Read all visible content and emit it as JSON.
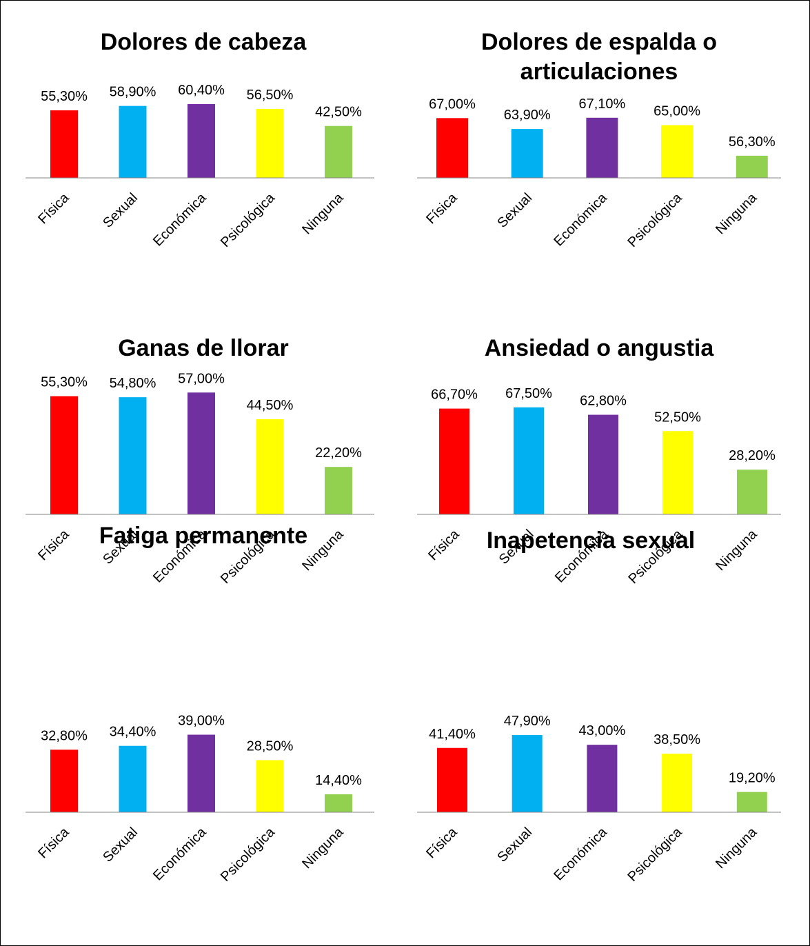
{
  "chart_data": [
    {
      "type": "bar",
      "title": "Dolores de cabeza",
      "categories": [
        "Física",
        "Sexual",
        "Económica",
        "Psicológica",
        "Ninguna"
      ],
      "values": [
        55.3,
        58.9,
        60.4,
        56.5,
        42.5
      ],
      "value_labels": [
        "55,30%",
        "58,90%",
        "60,40%",
        "56,50%",
        "42,50%"
      ],
      "colors": [
        "#ff0000",
        "#00b0f0",
        "#7030a0",
        "#ffff00",
        "#92d050"
      ],
      "ylim": [
        0,
        70
      ]
    },
    {
      "type": "bar",
      "title": "Dolores de espalda o articulaciones",
      "categories": [
        "Física",
        "Sexual",
        "Económica",
        "Psicológica",
        "Ninguna"
      ],
      "values": [
        67.0,
        63.9,
        67.1,
        65.0,
        56.3
      ],
      "value_labels": [
        "67,00%",
        "63,90%",
        "67,10%",
        "65,00%",
        "56,30%"
      ],
      "colors": [
        "#ff0000",
        "#00b0f0",
        "#7030a0",
        "#ffff00",
        "#92d050"
      ],
      "ylim": [
        50,
        70
      ]
    },
    {
      "type": "bar",
      "title": "Ganas de llorar",
      "categories": [
        "Física",
        "Sexual",
        "Económica",
        "Psicológica",
        "Ninguna"
      ],
      "values": [
        55.3,
        54.8,
        57.0,
        44.5,
        22.2
      ],
      "value_labels": [
        "55,30%",
        "54,80%",
        "57,00%",
        "44,50%",
        "22,20%"
      ],
      "colors": [
        "#ff0000",
        "#00b0f0",
        "#7030a0",
        "#ffff00",
        "#92d050"
      ],
      "ylim": [
        0,
        60
      ]
    },
    {
      "type": "bar",
      "title": "Ansiedad o angustia",
      "categories": [
        "Física",
        "Sexual",
        "Económica",
        "Psicológica",
        "Ninguna"
      ],
      "values": [
        66.7,
        67.5,
        62.8,
        52.5,
        28.2
      ],
      "value_labels": [
        "66,70%",
        "67,50%",
        "62,80%",
        "52,50%",
        "28,20%"
      ],
      "colors": [
        "#ff0000",
        "#00b0f0",
        "#7030a0",
        "#ffff00",
        "#92d050"
      ],
      "ylim": [
        0,
        70
      ]
    },
    {
      "type": "bar",
      "title": "Fatiga permanente",
      "categories": [
        "Física",
        "Sexual",
        "Económica",
        "Psicológica",
        "Ninguna"
      ],
      "values": [
        32.8,
        34.4,
        39.0,
        28.5,
        14.4
      ],
      "value_labels": [
        "32,80%",
        "34,40%",
        "39,00%",
        "28,50%",
        "14,40%"
      ],
      "colors": [
        "#ff0000",
        "#00b0f0",
        "#7030a0",
        "#ffff00",
        "#92d050"
      ],
      "ylim": [
        7,
        42
      ]
    },
    {
      "type": "bar",
      "title": "Inapetencia sexual",
      "categories": [
        "Física",
        "Sexual",
        "Económica",
        "Psicológica",
        "Ninguna"
      ],
      "values": [
        41.4,
        47.9,
        43.0,
        38.5,
        19.2
      ],
      "value_labels": [
        "41,40%",
        "47,90%",
        "43,00%",
        "38,50%",
        "19,20%"
      ],
      "colors": [
        "#ff0000",
        "#00b0f0",
        "#7030a0",
        "#ffff00",
        "#92d050"
      ],
      "ylim": [
        9,
        50
      ]
    }
  ]
}
